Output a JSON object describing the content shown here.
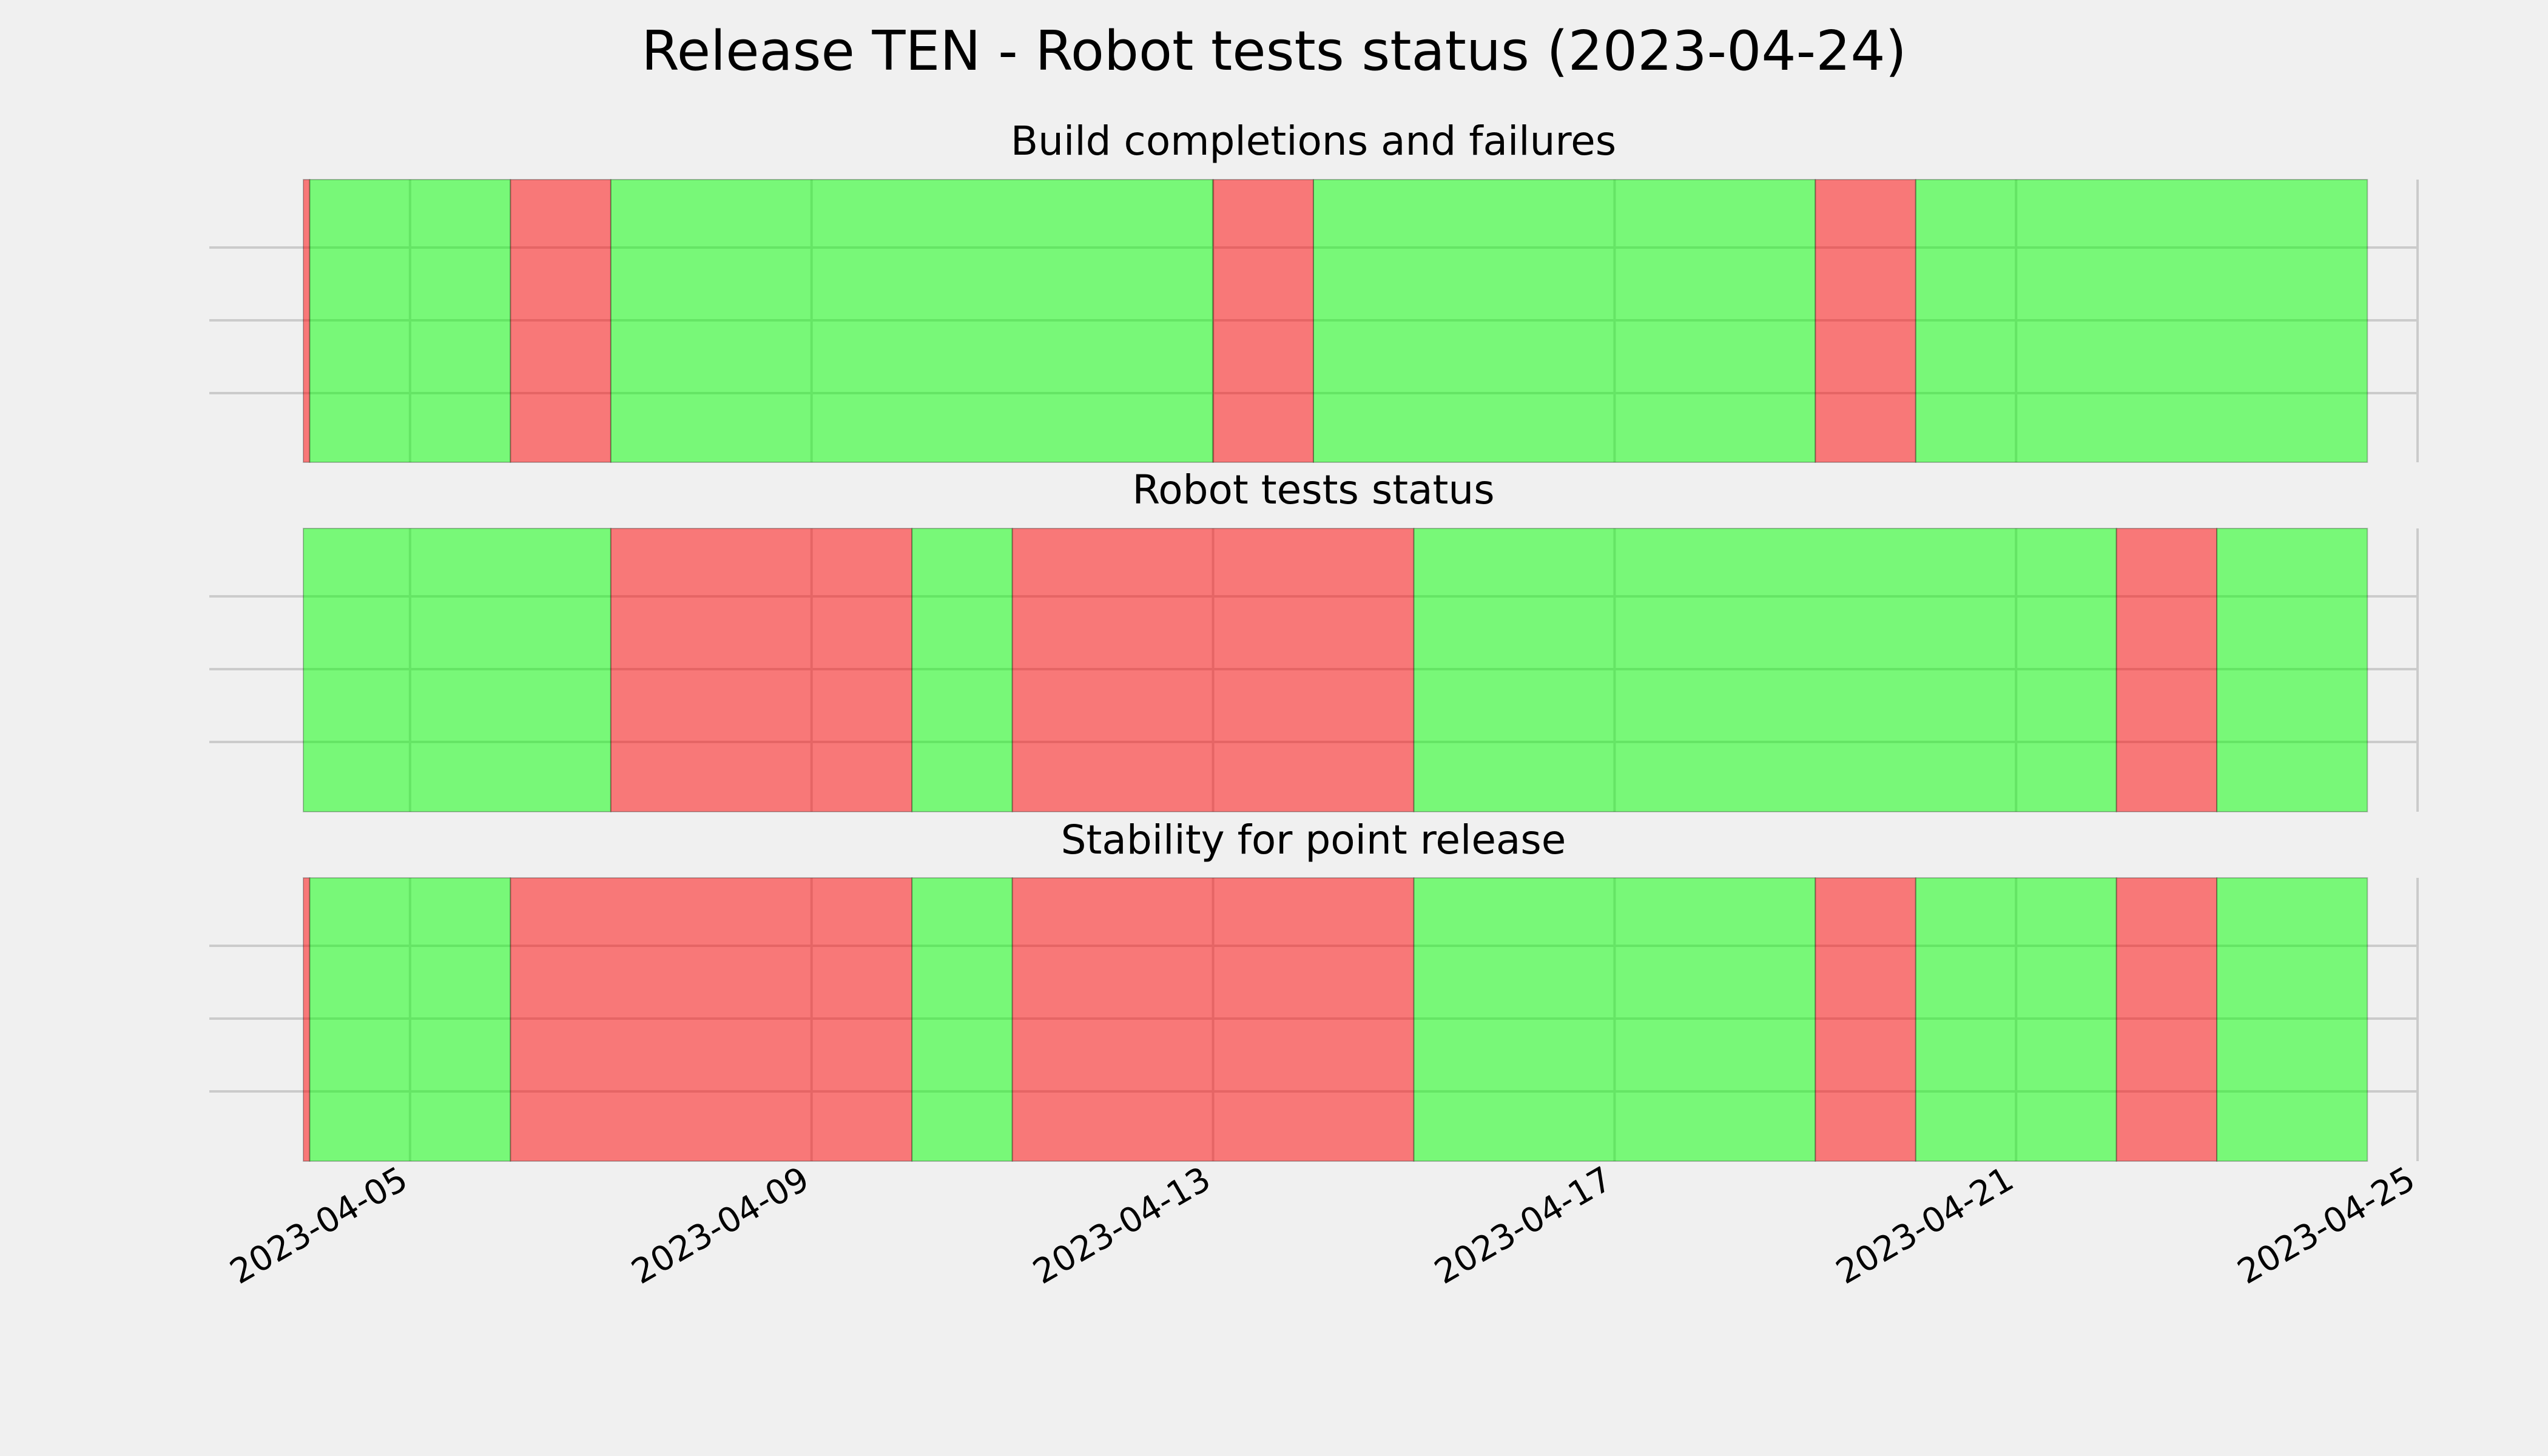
{
  "chart_data": {
    "type": "timeline",
    "title": "Release TEN - Robot tests status (2023-04-24)",
    "x_axis": {
      "range": [
        "2023-04-03",
        "2023-04-25"
      ],
      "tick_labels": [
        "2023-04-05",
        "2023-04-09",
        "2023-04-13",
        "2023-04-17",
        "2023-04-21",
        "2023-04-25"
      ]
    },
    "colors": {
      "ok": "#00ff00",
      "fail": "#ff0000",
      "background": "#f0f0f0",
      "grid": "#cbcbcb"
    },
    "grid": true,
    "panels": [
      {
        "title": "Build completions and failures",
        "segments": [
          {
            "start": "2023-04-03T00:00",
            "end": "2023-04-04T00:00",
            "status": "fail"
          },
          {
            "start": "2023-04-04T00:00",
            "end": "2023-04-06T00:00",
            "status": "ok"
          },
          {
            "start": "2023-04-06T00:00",
            "end": "2023-04-07T00:00",
            "status": "fail"
          },
          {
            "start": "2023-04-07T00:00",
            "end": "2023-04-13T00:00",
            "status": "ok"
          },
          {
            "start": "2023-04-13T00:00",
            "end": "2023-04-14T00:00",
            "status": "fail"
          },
          {
            "start": "2023-04-14T00:00",
            "end": "2023-04-19T00:00",
            "status": "ok"
          },
          {
            "start": "2023-04-19T00:00",
            "end": "2023-04-20T00:00",
            "status": "fail"
          },
          {
            "start": "2023-04-20T00:00",
            "end": "2023-04-24T12:00",
            "status": "ok"
          }
        ]
      },
      {
        "title": "Robot tests status",
        "segments": [
          {
            "start": "2023-04-03T00:00",
            "end": "2023-04-07T00:00",
            "status": "ok"
          },
          {
            "start": "2023-04-07T00:00",
            "end": "2023-04-10T00:00",
            "status": "fail"
          },
          {
            "start": "2023-04-10T00:00",
            "end": "2023-04-11T00:00",
            "status": "ok"
          },
          {
            "start": "2023-04-11T00:00",
            "end": "2023-04-15T00:00",
            "status": "fail"
          },
          {
            "start": "2023-04-15T00:00",
            "end": "2023-04-22T00:00",
            "status": "ok"
          },
          {
            "start": "2023-04-22T00:00",
            "end": "2023-04-23T00:00",
            "status": "fail"
          },
          {
            "start": "2023-04-23T00:00",
            "end": "2023-04-24T12:00",
            "status": "ok"
          }
        ]
      },
      {
        "title": "Stability for point release",
        "segments": [
          {
            "start": "2023-04-03T00:00",
            "end": "2023-04-04T00:00",
            "status": "fail"
          },
          {
            "start": "2023-04-04T00:00",
            "end": "2023-04-06T00:00",
            "status": "ok"
          },
          {
            "start": "2023-04-06T00:00",
            "end": "2023-04-10T00:00",
            "status": "fail"
          },
          {
            "start": "2023-04-10T00:00",
            "end": "2023-04-11T00:00",
            "status": "ok"
          },
          {
            "start": "2023-04-11T00:00",
            "end": "2023-04-15T00:00",
            "status": "fail"
          },
          {
            "start": "2023-04-15T00:00",
            "end": "2023-04-19T00:00",
            "status": "ok"
          },
          {
            "start": "2023-04-19T00:00",
            "end": "2023-04-20T00:00",
            "status": "fail"
          },
          {
            "start": "2023-04-20T00:00",
            "end": "2023-04-22T00:00",
            "status": "ok"
          },
          {
            "start": "2023-04-22T00:00",
            "end": "2023-04-23T00:00",
            "status": "fail"
          },
          {
            "start": "2023-04-23T00:00",
            "end": "2023-04-24T12:00",
            "status": "ok"
          }
        ]
      }
    ]
  }
}
